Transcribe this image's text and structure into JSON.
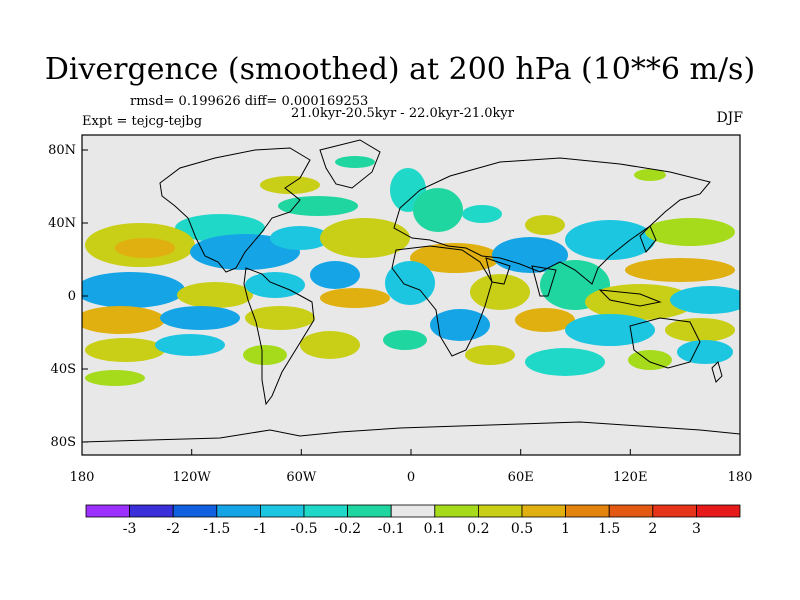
{
  "title": "Divergence (smoothed) at 200 hPa (10**6 m/s)",
  "stats": "rmsd= 0.199626 diff= 0.000169253",
  "period": "21.0kyr-20.5kyr - 22.0kyr-21.0kyr",
  "expt": "Expt = tejcg-tejbg",
  "season": "DJF",
  "axes": {
    "lat_labels": [
      "80N",
      "40N",
      "0",
      "40S",
      "80S"
    ],
    "lon_labels": [
      "180",
      "120W",
      "60W",
      "0",
      "60E",
      "120E",
      "180"
    ]
  },
  "colorbar": {
    "labels": [
      "-3",
      "-2",
      "-1.5",
      "-1",
      "-0.5",
      "-0.2",
      "-0.1",
      "0.1",
      "0.2",
      "0.5",
      "1",
      "1.5",
      "2",
      "3"
    ],
    "colors": [
      "#9b30ff",
      "#3a2fd9",
      "#1160e0",
      "#15a5e6",
      "#1dc6e0",
      "#20d8c8",
      "#20d6a0",
      "#e8e8e8",
      "#a6db1c",
      "#c9cf16",
      "#e0b010",
      "#e3840e",
      "#e55a12",
      "#e6341a",
      "#e61a1a"
    ]
  },
  "palette": {
    "ocean_bg": "#e8e8e8",
    "pos_weak": "#a6db1c",
    "pos_mid": "#c9cf16",
    "pos_strong": "#e0b010",
    "neg_weak": "#20d6a0",
    "neg_mid": "#1dc6e0",
    "neg_strong": "#15a5e6"
  }
}
